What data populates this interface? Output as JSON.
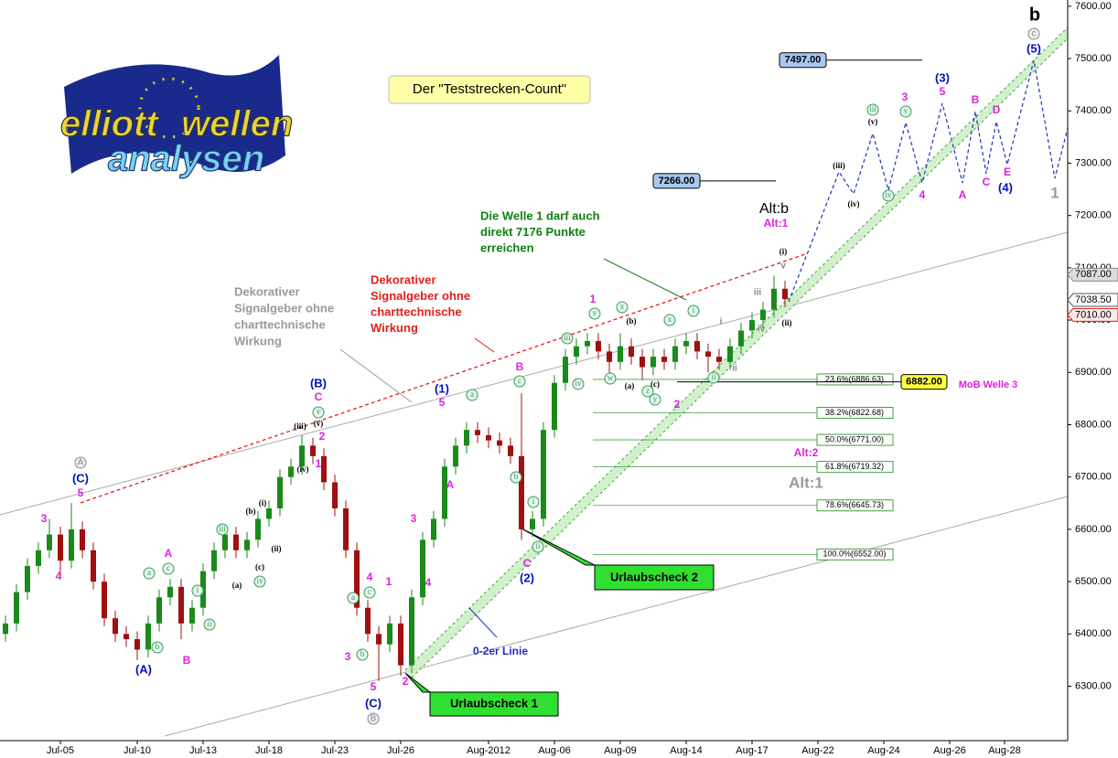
{
  "chart_data": {
    "type": "candlestick",
    "up_color": "#1a8a1a",
    "down_color": "#a01010",
    "ylim": [
      6196,
      7612
    ],
    "yticks": [
      {
        "value": 6300,
        "label": "6300.00"
      },
      {
        "value": 6400,
        "label": "6400.00"
      },
      {
        "value": 6500,
        "label": "6500.00"
      },
      {
        "value": 6600,
        "label": "6600.00"
      },
      {
        "value": 6700,
        "label": "6700.00"
      },
      {
        "value": 6800,
        "label": "6800.00"
      },
      {
        "value": 6900,
        "label": "6900.00"
      },
      {
        "value": 7000,
        "label": "7000.00"
      },
      {
        "value": 7100,
        "label": "7100.00"
      },
      {
        "value": 7200,
        "label": "7200.00"
      },
      {
        "value": 7300,
        "label": "7300.00"
      },
      {
        "value": 7400,
        "label": "7400.00"
      },
      {
        "value": 7500,
        "label": "7500.00"
      },
      {
        "value": 7600,
        "label": "7600.00"
      }
    ],
    "categories": [
      null,
      null,
      null,
      null,
      null,
      "Jul-05",
      null,
      null,
      null,
      null,
      null,
      null,
      "Jul-10",
      null,
      null,
      null,
      null,
      null,
      "Jul-13",
      null,
      null,
      null,
      null,
      null,
      "Jul-18",
      null,
      null,
      null,
      null,
      null,
      "Jul-23",
      null,
      null,
      null,
      null,
      null,
      "Jul-26",
      null,
      null,
      null,
      null,
      null,
      null,
      null,
      "Aug-2012",
      null,
      null,
      null,
      null,
      null,
      "Aug-06",
      null,
      null,
      null,
      null,
      null,
      "Aug-09",
      null,
      null,
      null,
      null,
      null,
      "Aug-14",
      null,
      null,
      null,
      null,
      null,
      "Aug-17",
      null,
      null,
      null,
      null,
      null,
      "Aug-22",
      null,
      null,
      null,
      null,
      null,
      "Aug-24",
      null,
      null,
      null,
      null,
      null,
      "Aug-26",
      null,
      null,
      null,
      null,
      "Aug-28",
      null,
      null,
      null,
      null,
      null
    ],
    "open": [
      6400,
      6420,
      6480,
      6530,
      6560,
      6590,
      6540,
      6600,
      6560,
      6500,
      6430,
      6400,
      6390,
      6370,
      6420,
      6470,
      6490,
      6420,
      6450,
      6520,
      6560,
      6590,
      6560,
      6580,
      6620,
      6640,
      6700,
      6720,
      6760,
      6740,
      6690,
      6640,
      6560,
      6450,
      6400,
      6380,
      6420,
      6340,
      6470,
      6580,
      6620,
      6720,
      6760,
      6790,
      6780,
      6770,
      6760,
      6740,
      6600,
      6620,
      6790,
      6880,
      6930,
      6950,
      6960,
      6940,
      6920,
      6950,
      6930,
      6910,
      6930,
      6920,
      6950,
      6960,
      6940,
      6930,
      6920,
      6950,
      6980,
      7000,
      7020,
      7060,
      null,
      null,
      null,
      null,
      null,
      null,
      null,
      null,
      null,
      null,
      null,
      null,
      null,
      null,
      null,
      null,
      null,
      null,
      null,
      null,
      null,
      null,
      null,
      null,
      null
    ],
    "high": [
      6435,
      6495,
      6545,
      6575,
      6620,
      6605,
      6650,
      6615,
      6575,
      6515,
      6445,
      6415,
      6405,
      6435,
      6485,
      6505,
      6505,
      6465,
      6535,
      6575,
      6605,
      6605,
      6595,
      6635,
      6655,
      6715,
      6735,
      6780,
      6775,
      6755,
      6705,
      6655,
      6575,
      6465,
      6415,
      6435,
      6435,
      6485,
      6595,
      6635,
      6735,
      6775,
      6805,
      6805,
      6795,
      6785,
      6775,
      6860,
      6635,
      6805,
      6895,
      6945,
      6965,
      6975,
      6975,
      6955,
      6975,
      6965,
      6945,
      6945,
      6945,
      6965,
      6975,
      6975,
      6955,
      6945,
      6965,
      6995,
      7015,
      7035,
      7085,
      7075,
      null,
      null,
      null,
      null,
      null,
      null,
      null,
      null,
      null,
      null,
      null,
      null,
      null,
      null,
      null,
      null,
      null,
      null,
      null,
      null,
      null,
      null,
      null,
      null,
      null
    ],
    "low": [
      6385,
      6405,
      6465,
      6515,
      6545,
      6510,
      6525,
      6545,
      6485,
      6415,
      6385,
      6375,
      6350,
      6355,
      6405,
      6455,
      6390,
      6405,
      6435,
      6505,
      6545,
      6545,
      6545,
      6565,
      6605,
      6625,
      6685,
      6705,
      6725,
      6675,
      6625,
      6545,
      6435,
      6385,
      6310,
      6365,
      6320,
      6325,
      6455,
      6565,
      6605,
      6705,
      6745,
      6765,
      6755,
      6745,
      6725,
      6580,
      6585,
      6605,
      6775,
      6865,
      6915,
      6935,
      6925,
      6890,
      6905,
      6915,
      6885,
      6895,
      6905,
      6905,
      6935,
      6925,
      6900,
      6905,
      6905,
      6935,
      6965,
      6985,
      7005,
      7025,
      null,
      null,
      null,
      null,
      null,
      null,
      null,
      null,
      null,
      null,
      null,
      null,
      null,
      null,
      null,
      null,
      null,
      null,
      null,
      null,
      null,
      null,
      null,
      null,
      null
    ],
    "close": [
      6420,
      6480,
      6530,
      6560,
      6590,
      6540,
      6600,
      6560,
      6500,
      6430,
      6400,
      6390,
      6370,
      6420,
      6470,
      6490,
      6420,
      6450,
      6520,
      6560,
      6590,
      6560,
      6580,
      6620,
      6640,
      6700,
      6720,
      6760,
      6740,
      6690,
      6640,
      6560,
      6450,
      6400,
      6380,
      6420,
      6340,
      6470,
      6580,
      6620,
      6720,
      6760,
      6790,
      6780,
      6770,
      6760,
      6740,
      6600,
      6620,
      6790,
      6880,
      6930,
      6950,
      6960,
      6940,
      6920,
      6950,
      6930,
      6910,
      6930,
      6920,
      6950,
      6960,
      6940,
      6930,
      6920,
      6950,
      6980,
      7000,
      7020,
      7060,
      7040,
      null,
      null,
      null,
      null,
      null,
      null,
      null,
      null,
      null,
      null,
      null,
      null,
      null,
      null,
      null,
      null,
      null,
      null,
      null,
      null,
      null,
      null,
      null,
      null,
      null
    ],
    "fib_levels": [
      {
        "value": 6886.63,
        "label": "23.6%(6886.63)"
      },
      {
        "value": 6822.68,
        "label": "38.2%(6822.68)"
      },
      {
        "value": 6771,
        "label": "50.0%(6771.00)"
      },
      {
        "value": 6719.32,
        "label": "61.8%(6719.32)"
      },
      {
        "value": 6645.73,
        "label": "78.6%(6645.73)"
      },
      {
        "value": 6552,
        "label": "100.0%(6552.00)"
      }
    ],
    "targets": [
      {
        "value": 7497,
        "label": "7497.00"
      },
      {
        "value": 7266,
        "label": "7266.00"
      },
      {
        "value": 6882,
        "label": "6882.00"
      }
    ],
    "last_prices": [
      {
        "value": 7087,
        "label": "7087.00"
      },
      {
        "value": 7038.5,
        "label": "7038.50"
      },
      {
        "value": 7010,
        "label": "7010.00"
      }
    ],
    "title": "Der \"Teststrecken-Count\"",
    "notes": [
      {
        "lines": [
          "Dekorativer",
          "Signalgeber ohne",
          "charttechnische",
          "Wirkung"
        ]
      },
      {
        "lines": [
          "Dekorativer",
          "Signalgeber ohne",
          "charttechnische",
          "Wirkung"
        ]
      },
      {
        "lines": [
          "Die Welle 1 darf auch",
          "direkt 7176 Punkte",
          "erreichen"
        ]
      },
      {
        "lines": [
          "0-2er Linie"
        ]
      },
      {
        "lines": [
          "Urlaubscheck 1"
        ]
      },
      {
        "lines": [
          "Urlaubscheck 2"
        ]
      }
    ],
    "annotations": [
      "3",
      "4",
      "5",
      "(C)",
      "A",
      "a",
      "b",
      "c",
      "A",
      "B",
      "(A)",
      "i",
      "ii",
      "iii",
      "(a)",
      "(b)",
      "(i)",
      "(c)",
      "(ii)",
      "iv",
      "(iii)",
      "(iv)",
      "(v)",
      "v",
      "2",
      "1",
      "C",
      "(B)",
      "3",
      "4",
      "a",
      "c",
      "b",
      "1",
      "5",
      "(C)",
      "B",
      "2",
      "3",
      "4",
      "A",
      "a",
      "5",
      "(1)",
      "B",
      "c",
      "b",
      "i",
      "ii",
      "C",
      "(2)",
      "iii",
      "iv",
      "w",
      "v",
      "1",
      "x",
      "(b)",
      "(a)",
      "(c)",
      "y",
      "x",
      "z",
      "2",
      "i",
      "ii",
      "i",
      "ii",
      "iii",
      "iv",
      "v",
      "(i)",
      "(ii)",
      "(iii)",
      "(iv)",
      "(v)",
      "iii",
      "v",
      "iv",
      "3",
      "5",
      "(3)",
      "4",
      "A",
      "B",
      "C",
      "D",
      "E",
      "(4)",
      "(5)",
      "c",
      "b",
      "1",
      "Alt:b",
      "Alt:1",
      "Alt:2",
      "Alt:1",
      "MoB Welle 3"
    ]
  },
  "logo": {
    "words": [
      "elliott",
      "wellen",
      "analysen"
    ]
  }
}
